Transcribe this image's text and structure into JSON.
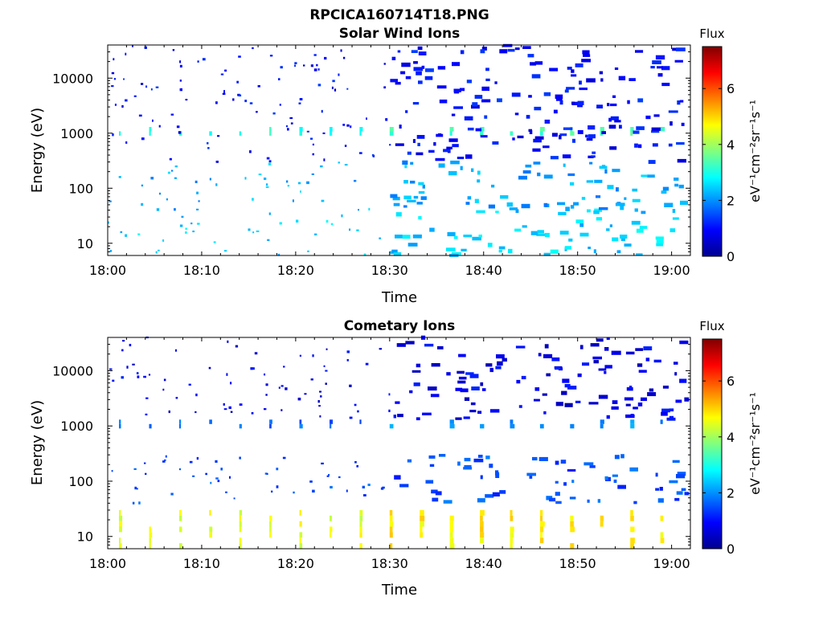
{
  "figure_title": "RPCICA160714T18.PNG",
  "colorbar": {
    "title": "Flux",
    "label": "eV⁻¹cm⁻²sr⁻¹s⁻¹",
    "ticks": [
      0,
      2,
      4,
      6
    ],
    "range": [
      0,
      7.5
    ],
    "colormap": "jet"
  },
  "chart_data": [
    {
      "type": "heatmap",
      "title": "Solar Wind Ions",
      "xlabel": "Time",
      "ylabel": "Energy (eV)",
      "x_ticks": [
        "18:00",
        "18:10",
        "18:20",
        "18:30",
        "18:40",
        "18:50",
        "19:00"
      ],
      "x_range": [
        "18:00",
        "19:02"
      ],
      "y_scale": "log",
      "y_ticks": [
        10,
        100,
        1000,
        10000
      ],
      "y_range": [
        6,
        40000
      ],
      "colorbar_range": [
        0,
        7.5
      ],
      "bands": [
        {
          "energy": [
            900,
            1300
          ],
          "level": 3.0,
          "period_min": 3.2,
          "description": "periodic ~1 keV solar wind beam"
        },
        {
          "energy": [
            6,
            40
          ],
          "level": 2.5,
          "description": "low-energy ions"
        },
        {
          "energy": [
            40,
            300
          ],
          "level": 2.2,
          "description": "scattered mid-energy ions"
        },
        {
          "energy": [
            300,
            40000
          ],
          "level": 1.0,
          "description": "scattered high-energy counts, denser after 18:30"
        }
      ]
    },
    {
      "type": "heatmap",
      "title": "Cometary Ions",
      "xlabel": "Time",
      "ylabel": "Energy (eV)",
      "x_ticks": [
        "18:00",
        "18:10",
        "18:20",
        "18:30",
        "18:40",
        "18:50",
        "19:00"
      ],
      "x_range": [
        "18:00",
        "19:02"
      ],
      "y_scale": "log",
      "y_ticks": [
        10,
        100,
        1000,
        10000
      ],
      "y_range": [
        6,
        40000
      ],
      "colorbar_range": [
        0,
        7.5
      ],
      "bands": [
        {
          "energy": [
            6,
            30
          ],
          "level": 4.5,
          "period_min": 3.2,
          "description": "periodic low-energy cometary ions"
        },
        {
          "energy": [
            900,
            1300
          ],
          "level": 1.7,
          "period_min": 3.2,
          "description": "periodic ~1 keV counts"
        },
        {
          "energy": [
            40,
            300
          ],
          "level": 1.5,
          "description": "scattered mid-energy counts"
        },
        {
          "energy": [
            1300,
            40000
          ],
          "level": 0.8,
          "description": "sparse high-energy counts"
        }
      ]
    }
  ]
}
